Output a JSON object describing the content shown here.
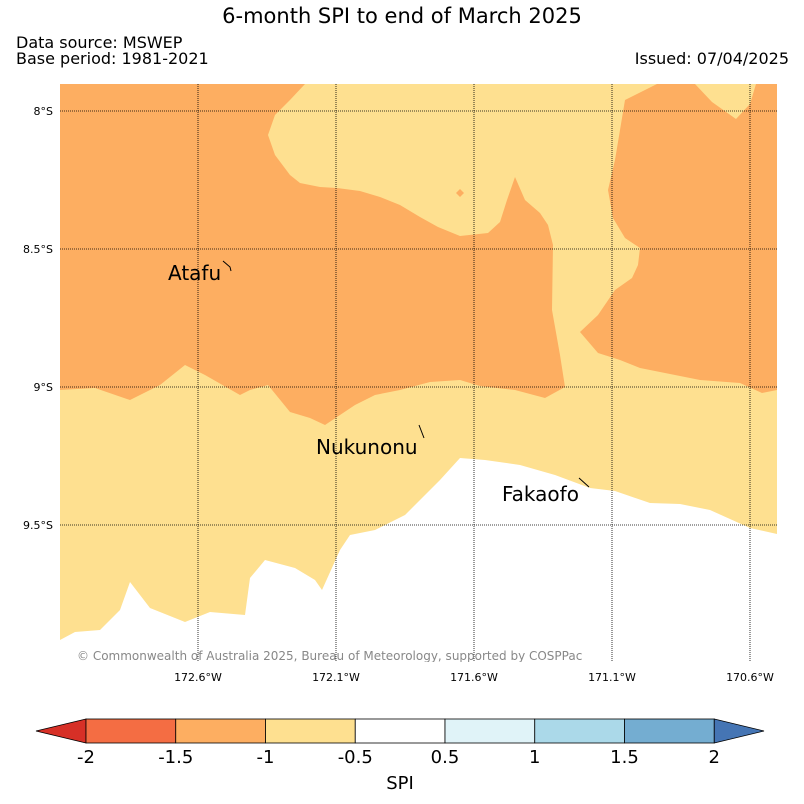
{
  "header": {
    "title": "6-month SPI to end of March 2025",
    "data_source": "Data source: MSWEP",
    "base_period": "Base period: 1981-2021",
    "issued": "Issued: 07/04/2025"
  },
  "map": {
    "latitude_labels": [
      "8°S",
      "8.5°S",
      "9°S",
      "9.5°S"
    ],
    "longitude_labels": [
      "172.6°W",
      "172.1°W",
      "171.6°W",
      "171.1°W",
      "170.6°W"
    ],
    "islands": [
      "Atafu",
      "Nukunonu",
      "Fakaofo"
    ],
    "credit": "© Commonwealth of Australia 2025, Bureau of Meteorology, supported by COSPPac",
    "colors": {
      "moderately_dry": "#fdae61",
      "mildly_dry": "#fee090",
      "near_normal": "#ffffff"
    }
  },
  "colorbar": {
    "title": "SPI",
    "ticks": [
      "-2",
      "-1.5",
      "-1",
      "-0.5",
      "0.5",
      "1",
      "1.5",
      "2"
    ],
    "colors": [
      "#d73027",
      "#f46d43",
      "#fdae61",
      "#fee090",
      "#ffffff",
      "#e0f3f8",
      "#abd9e9",
      "#74add1",
      "#4575b4"
    ]
  }
}
